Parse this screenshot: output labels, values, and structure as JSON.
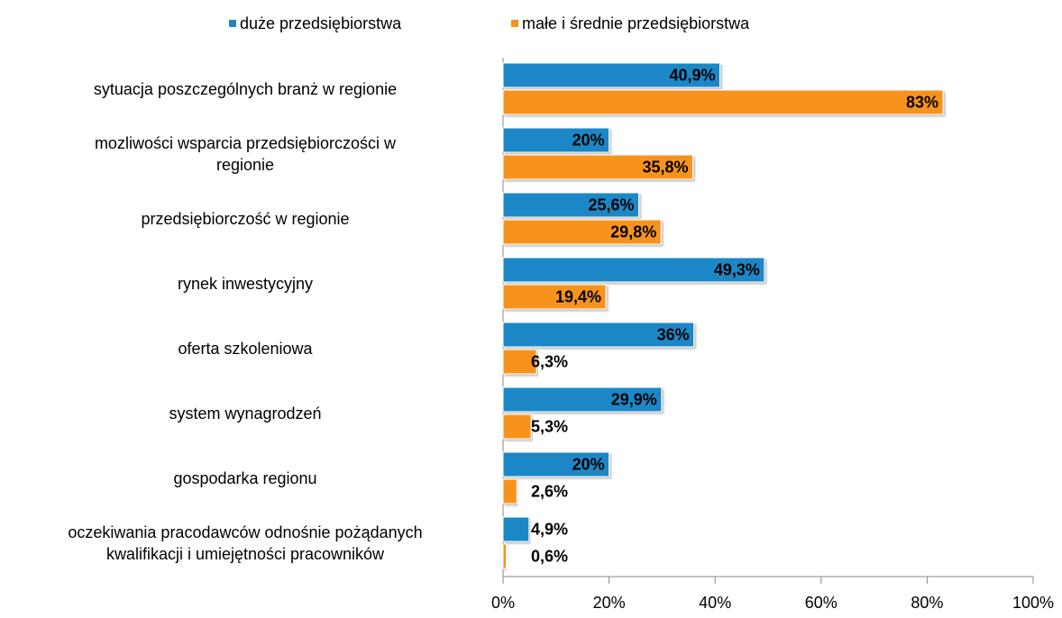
{
  "chart_data": {
    "type": "barh",
    "categories": [
      [
        "sytuacja poszczególnych branż w regionie"
      ],
      [
        "mozliwości wsparcia przedsiębiorczości w",
        "regionie"
      ],
      [
        "przedsiębiorczość w regionie"
      ],
      [
        "rynek inwestycyjny"
      ],
      [
        "oferta szkoleniowa"
      ],
      [
        "system wynagrodzeń"
      ],
      [
        "gospodarka regionu"
      ],
      [
        "oczekiwania pracodawców odnośnie pożądanych",
        "kwalifikacji i umiejętności pracowników"
      ]
    ],
    "series": [
      {
        "name": "duże przedsiębiorstwa",
        "color": "#1d87c6",
        "values": [
          40.9,
          20,
          25.6,
          49.3,
          36,
          29.9,
          20,
          4.9
        ],
        "value_labels": [
          "40,9%",
          "20%",
          "25,6%",
          "49,3%",
          "36%",
          "29,9%",
          "20%",
          "4,9%"
        ]
      },
      {
        "name": "małe i średnie przedsiębiorstwa",
        "color": "#f7931e",
        "values": [
          83,
          35.8,
          29.8,
          19.4,
          6.3,
          5.3,
          2.6,
          0.6
        ],
        "value_labels": [
          "83%",
          "35,8%",
          "29,8%",
          "19,4%",
          "6,3%",
          "5,3%",
          "2,6%",
          "0,6%"
        ]
      }
    ],
    "xlim": [
      0,
      100
    ],
    "xticks": [
      {
        "value": 0,
        "label": "0%"
      },
      {
        "value": 20,
        "label": "20%"
      },
      {
        "value": 40,
        "label": "40%"
      },
      {
        "value": 60,
        "label": "60%"
      },
      {
        "value": 80,
        "label": "80%"
      },
      {
        "value": 100,
        "label": "100%"
      }
    ],
    "legend": "top"
  }
}
